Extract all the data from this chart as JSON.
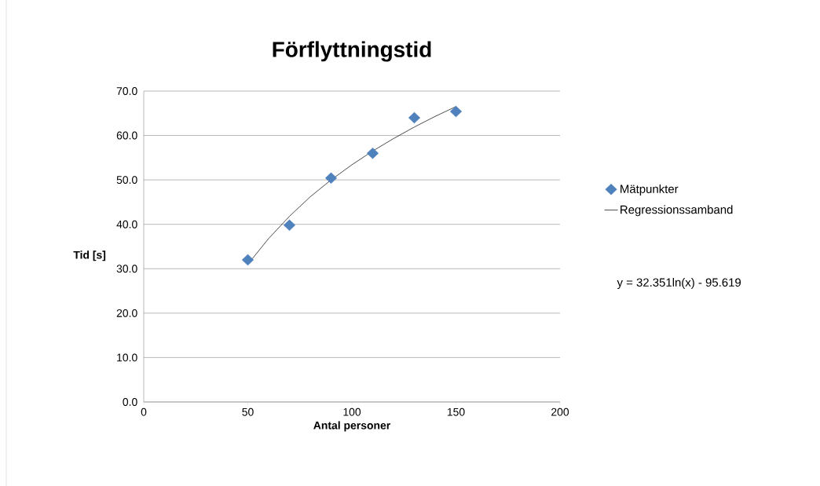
{
  "chart_data": {
    "type": "scatter",
    "title": "Förflyttningstid",
    "xlabel": "Antal personer",
    "ylabel": "Tid [s]",
    "xlim": [
      0,
      200
    ],
    "xticks": [
      0,
      50,
      100,
      150,
      200
    ],
    "ylim": [
      0,
      70
    ],
    "yticks": [
      {
        "value": 0,
        "label": "0.0"
      },
      {
        "value": 10,
        "label": "10.0"
      },
      {
        "value": 20,
        "label": "20.0"
      },
      {
        "value": 30,
        "label": "30.0"
      },
      {
        "value": 40,
        "label": "40.0"
      },
      {
        "value": 50,
        "label": "50.0"
      },
      {
        "value": 60,
        "label": "60.0"
      },
      {
        "value": 70,
        "label": "70.0"
      }
    ],
    "grid": "y",
    "legend": "right",
    "series": [
      {
        "name": "Mätpunkter",
        "color": "#4f81bd",
        "marker": "diamond",
        "x": [
          50,
          70,
          90,
          110,
          130,
          150
        ],
        "values": [
          32.0,
          39.8,
          50.4,
          56.0,
          64.0,
          65.4
        ]
      },
      {
        "name": "Regressionssamband",
        "type": "line",
        "color": "#000000",
        "marker": "none",
        "line_style": "solid",
        "x": [
          50,
          60,
          70,
          80,
          90,
          100,
          110,
          120,
          130,
          140,
          150
        ],
        "values": [
          31.0,
          36.8,
          41.8,
          46.2,
          50.0,
          53.4,
          56.5,
          59.3,
          61.9,
          64.3,
          66.5
        ]
      }
    ],
    "annotations": [
      "y = 32.351ln(x) - 95.619"
    ]
  }
}
